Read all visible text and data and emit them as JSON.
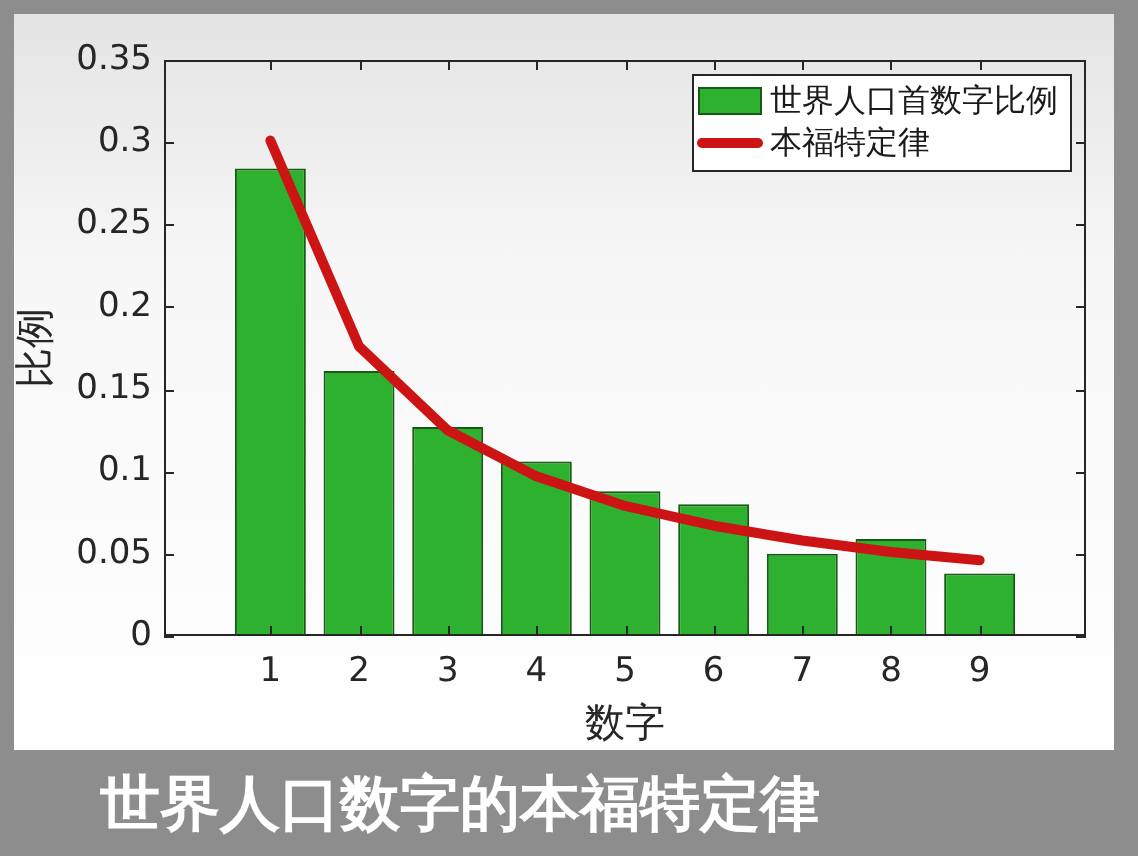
{
  "chart_data": {
    "type": "bar",
    "title": "世界人口数字的本福特定律",
    "xlabel": "数字",
    "ylabel": "比例",
    "categories": [
      "1",
      "2",
      "3",
      "4",
      "5",
      "6",
      "7",
      "8",
      "9"
    ],
    "series": [
      {
        "name": "世界人口首数字比例",
        "color": "#2eb12e",
        "values": [
          0.284,
          0.161,
          0.127,
          0.106,
          0.088,
          0.08,
          0.05,
          0.059,
          0.038
        ]
      },
      {
        "name": "本福特定律",
        "type": "line",
        "color": "#cc1414",
        "values": [
          0.301,
          0.176,
          0.125,
          0.097,
          0.079,
          0.067,
          0.058,
          0.051,
          0.046
        ]
      }
    ],
    "ylim": [
      0,
      0.35
    ],
    "yticks": [
      0,
      0.05,
      0.1,
      0.15,
      0.2,
      0.25,
      0.3,
      0.35
    ],
    "legend": "top right"
  }
}
